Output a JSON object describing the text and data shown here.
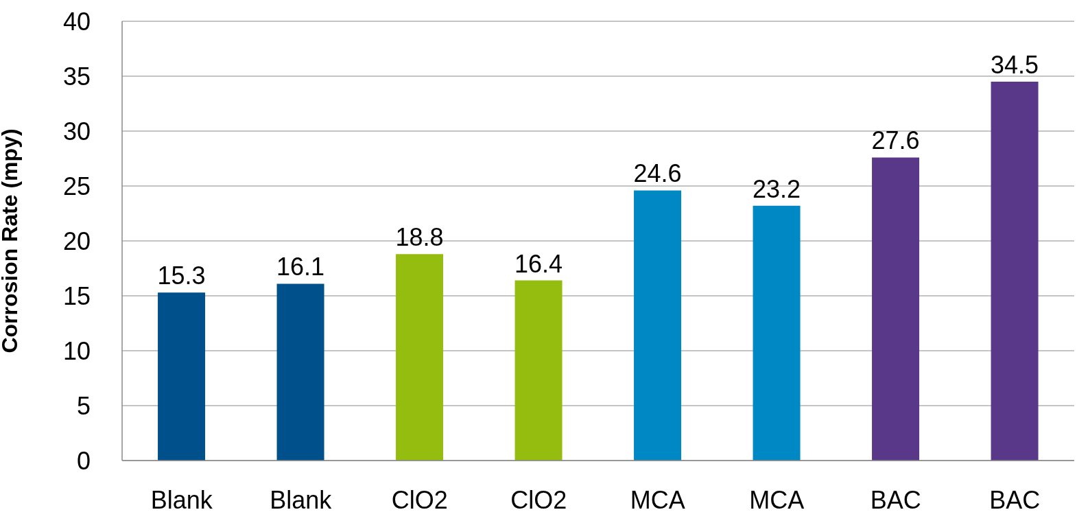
{
  "chart_data": {
    "type": "bar",
    "ylabel": "Corrosion Rate (mpy)",
    "categories": [
      "Blank",
      "Blank",
      "ClO2",
      "ClO2",
      "MCA",
      "MCA",
      "BAC",
      "BAC"
    ],
    "values": [
      15.3,
      16.1,
      18.8,
      16.4,
      24.6,
      23.2,
      27.6,
      34.5
    ],
    "colors": [
      "#00508c",
      "#00508c",
      "#95bd0f",
      "#95bd0f",
      "#0088c4",
      "#0088c4",
      "#59388a",
      "#59388a"
    ],
    "ylim": [
      0,
      40
    ],
    "yticks": [
      0,
      5,
      10,
      15,
      20,
      25,
      30,
      35,
      40
    ],
    "grid": "y",
    "data_labels": true
  }
}
